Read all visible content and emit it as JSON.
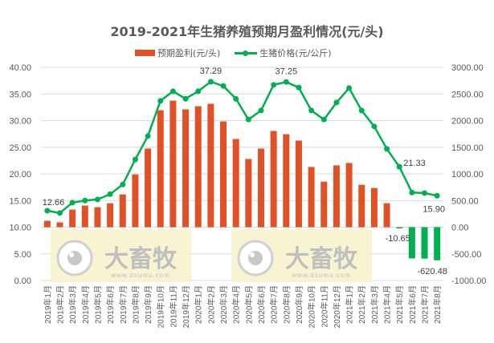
{
  "title": "2019-2021年生猪养殖预期月盈利情况(元/头)",
  "legend": {
    "bar_label": "预期盈利(元/头)",
    "line_label": "生猪价格(元/公斤)"
  },
  "watermark": {
    "brand": "大畜牧",
    "url": "www.dxumu.com"
  },
  "colors": {
    "bar_positive": "#E05226",
    "bar_negative": "#00B050",
    "line": "#00B050",
    "grid": "#D9D9D9",
    "axis_text": "#595959",
    "watermark_bg": "#F7F2C9",
    "watermark_fg": "#BFBFBF"
  },
  "chart_data": {
    "type": "bar+line",
    "title": "2019-2021年生猪养殖预期月盈利情况(元/头)",
    "categories": [
      "2019年1月",
      "2019年2月",
      "2019年3月",
      "2019年4月",
      "2019年5月",
      "2019年6月",
      "2019年7月",
      "2019年8月",
      "2019年9月",
      "2019年10月",
      "2019年11月",
      "2019年12月",
      "2020年1月",
      "2020年2月",
      "2020年3月",
      "2020年4月",
      "2020年5月",
      "2020年6月",
      "2020年7月",
      "2020年8月",
      "2020年9月",
      "2020年10月",
      "2020年11月",
      "2020年12月",
      "2021年1月",
      "2021年2月",
      "2021年3月",
      "2021年4月",
      "2021年5月",
      "2021年6月",
      "2021年7月",
      "2021年8月"
    ],
    "series": [
      {
        "name": "预期盈利(元/头)",
        "type": "bar",
        "axis": "right",
        "values": [
          120,
          90,
          330,
          405,
          375,
          450,
          615,
          990,
          1475,
          2195,
          2375,
          2210,
          2270,
          2315,
          1985,
          1655,
          1280,
          1475,
          1805,
          1745,
          1625,
          1130,
          855,
          1160,
          1205,
          795,
          735,
          450,
          -10.65,
          -585,
          -590,
          -620.48
        ]
      },
      {
        "name": "生猪价格(元/公斤)",
        "type": "line",
        "axis": "left",
        "values": [
          13.1,
          12.66,
          14.6,
          15.0,
          15.2,
          16.2,
          18.0,
          22.7,
          27.1,
          33.7,
          35.5,
          34.1,
          35.5,
          37.29,
          36.5,
          34.1,
          30.2,
          31.9,
          36.7,
          37.25,
          36.2,
          31.9,
          30.2,
          33.4,
          36.1,
          31.9,
          28.9,
          24.7,
          21.33,
          16.5,
          16.4,
          15.9
        ]
      }
    ],
    "data_labels": [
      {
        "series": 1,
        "index": 1,
        "text": "12.66"
      },
      {
        "series": 1,
        "index": 13,
        "text": "37.29"
      },
      {
        "series": 1,
        "index": 19,
        "text": "37.25"
      },
      {
        "series": 1,
        "index": 28,
        "text": "21.33"
      },
      {
        "series": 1,
        "index": 31,
        "text": "15.90"
      },
      {
        "series": 0,
        "index": 28,
        "text": "-10.65"
      },
      {
        "series": 0,
        "index": 31,
        "text": "-620.48"
      }
    ],
    "left_axis": {
      "min": 0,
      "max": 40,
      "step": 5,
      "tick_labels": [
        "0.00",
        "5.00",
        "10.00",
        "15.00",
        "20.00",
        "25.00",
        "30.00",
        "35.00",
        "40.00"
      ]
    },
    "right_axis": {
      "min": -1000,
      "max": 3000,
      "step": 500,
      "tick_labels": [
        "-1000.00",
        "-500.00",
        "0.00",
        "500.00",
        "1000.00",
        "1500.00",
        "2000.00",
        "2500.00",
        "3000.00"
      ]
    },
    "xlabel": "",
    "ylabel_left": "",
    "ylabel_right": "",
    "grid": true,
    "legend_position": "top"
  }
}
